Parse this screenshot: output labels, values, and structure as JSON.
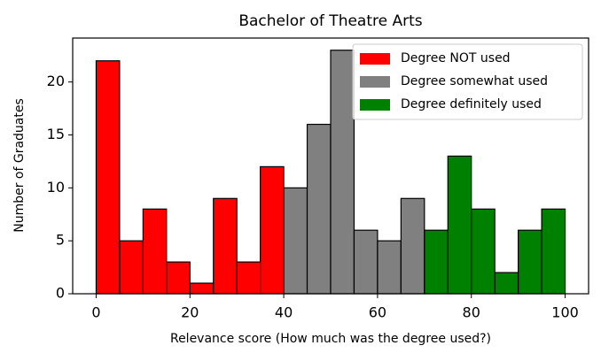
{
  "chart_data": {
    "type": "histogram",
    "title": "Bachelor of Theatre Arts",
    "xlabel": "Relevance score (How much was the degree used?)",
    "ylabel": "Number of Graduates",
    "series": [
      {
        "name": "Degree NOT used",
        "color": "#ff0000",
        "bins": [
          0,
          5,
          10,
          15,
          20,
          25,
          30,
          35,
          40
        ],
        "values": [
          22,
          5,
          8,
          3,
          1,
          9,
          3,
          12
        ]
      },
      {
        "name": "Degree somewhat used",
        "color": "#808080",
        "bins": [
          40,
          45,
          50,
          55,
          60,
          65,
          70
        ],
        "values": [
          10,
          16,
          23,
          6,
          5,
          9
        ]
      },
      {
        "name": "Degree definitely used",
        "color": "#008000",
        "bins": [
          70,
          75,
          80,
          85,
          90,
          95,
          100
        ],
        "values": [
          6,
          13,
          8,
          2,
          6,
          8
        ]
      }
    ],
    "xlim": [
      -5,
      105
    ],
    "xticks": [
      0,
      20,
      40,
      60,
      80,
      100
    ],
    "ylim": [
      0,
      24.15
    ],
    "yticks": [
      0,
      5,
      10,
      15,
      20
    ],
    "legend": "upper right"
  }
}
